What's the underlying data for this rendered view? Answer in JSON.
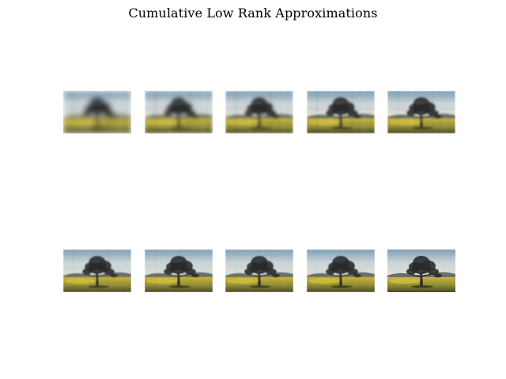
{
  "figure": {
    "title": "Cumulative Low Rank Approximations"
  },
  "approximations": [
    {
      "blur": 3.2,
      "blockiness": 0.9
    },
    {
      "blur": 2.4,
      "blockiness": 0.7
    },
    {
      "blur": 1.8,
      "blockiness": 0.55
    },
    {
      "blur": 1.4,
      "blockiness": 0.45
    },
    {
      "blur": 1.1,
      "blockiness": 0.35
    },
    {
      "blur": 0.8,
      "blockiness": 0.2
    },
    {
      "blur": 0.6,
      "blockiness": 0.15
    },
    {
      "blur": 0.5,
      "blockiness": 0.1
    },
    {
      "blur": 0.4,
      "blockiness": 0.05
    },
    {
      "blur": 0.3,
      "blockiness": 0.0
    }
  ],
  "colors": {
    "sky_top": "#7f9fb8",
    "sky_mid": "#c9d3d6",
    "sky_low": "#e3e2d8",
    "hills": "#6a6f68",
    "field_bright": "#c9b43a",
    "field_dark": "#4a4a26",
    "tree": "#2b2b2b"
  }
}
